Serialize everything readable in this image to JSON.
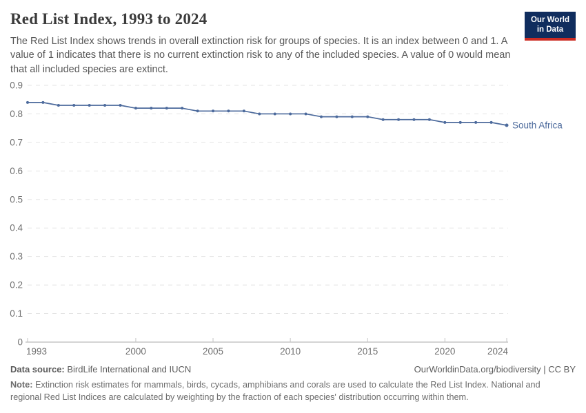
{
  "header": {
    "title": "Red List Index, 1993 to 2024",
    "subtitle": "The Red List Index shows trends in overall extinction risk for groups of species. It is an index between 0 and 1. A value of 1 indicates that there is no current extinction risk to any of the included species. A value of 0 would mean that all included species are extinct.",
    "logo": {
      "line1": "Our World",
      "line2": "in Data"
    }
  },
  "chart_data": {
    "type": "line",
    "title": "Red List Index, 1993 to 2024",
    "xlabel": "",
    "ylabel": "",
    "xlim": [
      1993,
      2024
    ],
    "ylim": [
      0,
      0.9
    ],
    "grid": "horizontal-dashed",
    "legend_position": "end-of-line-label",
    "xticks": [
      1993,
      2000,
      2005,
      2010,
      2015,
      2020,
      2024
    ],
    "yticks": [
      0,
      0.1,
      0.2,
      0.3,
      0.4,
      0.5,
      0.6,
      0.7,
      0.8,
      0.9
    ],
    "ytick_labels": [
      "0",
      "0.1",
      "0.2",
      "0.3",
      "0.4",
      "0.5",
      "0.6",
      "0.7",
      "0.8",
      "0.9"
    ],
    "x": [
      1993,
      1994,
      1995,
      1996,
      1997,
      1998,
      1999,
      2000,
      2001,
      2002,
      2003,
      2004,
      2005,
      2006,
      2007,
      2008,
      2009,
      2010,
      2011,
      2012,
      2013,
      2014,
      2015,
      2016,
      2017,
      2018,
      2019,
      2020,
      2021,
      2022,
      2023,
      2024
    ],
    "series": [
      {
        "name": "South Africa",
        "color": "#4C6A9C",
        "values": [
          0.84,
          0.84,
          0.83,
          0.83,
          0.83,
          0.83,
          0.83,
          0.82,
          0.82,
          0.82,
          0.82,
          0.81,
          0.81,
          0.81,
          0.81,
          0.8,
          0.8,
          0.8,
          0.8,
          0.79,
          0.79,
          0.79,
          0.79,
          0.78,
          0.78,
          0.78,
          0.78,
          0.77,
          0.77,
          0.77,
          0.77,
          0.76
        ]
      }
    ]
  },
  "footer": {
    "data_source_label": "Data source:",
    "data_source_value": " BirdLife International and IUCN",
    "attribution": "OurWorldinData.org/biodiversity | CC BY",
    "note_label": "Note:",
    "note_value": " Extinction risk estimates for mammals, birds, cycads, amphibians and corals are used to calculate the Red List Index. National and regional Red List Indices are calculated by weighting by the fraction of each species' distribution occurring within them."
  },
  "colors": {
    "line": "#4C6A9C",
    "grid": "#e3e3e3",
    "axis_line": "#a9a9a9",
    "axis_tick": "#c4c4c4",
    "axis_text": "#707070",
    "logo_bg": "#102d5e",
    "logo_stripe": "#cb2b23"
  }
}
